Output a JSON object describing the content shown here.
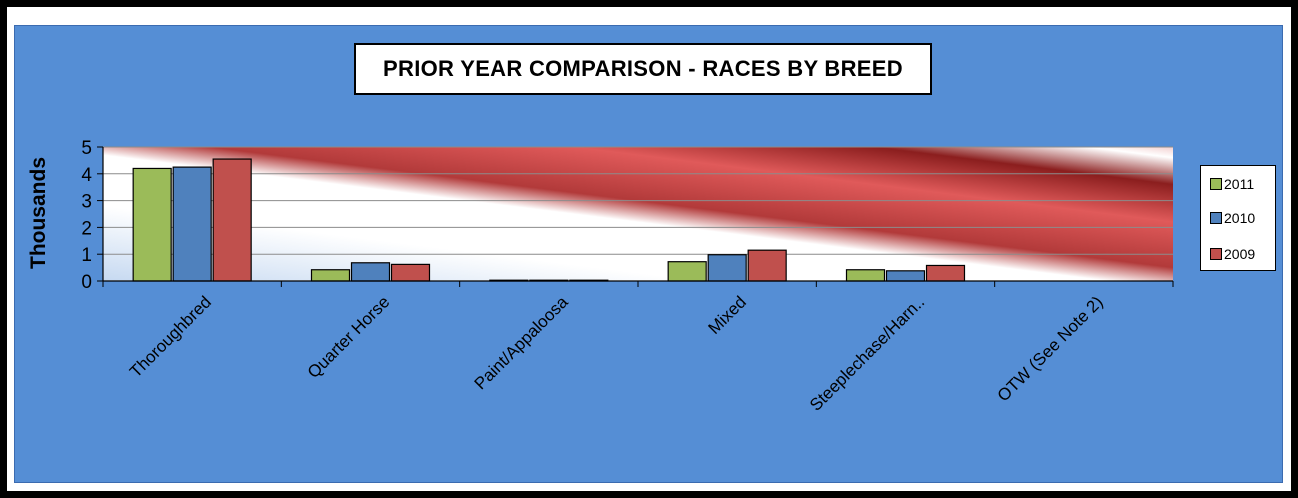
{
  "chart_data": {
    "type": "bar",
    "title": "PRIOR YEAR COMPARISON - RACES BY BREED",
    "ylabel": "Thousands",
    "xlabel": "",
    "ylim": [
      0,
      5
    ],
    "yticks": [
      "0",
      "1",
      "2",
      "3",
      "4",
      "5"
    ],
    "grid": true,
    "legend_position": "right",
    "categories": [
      "Thoroughbred",
      "Quarter Horse",
      "Paint/Appaloosa",
      "Mixed",
      "Steeplechase/Harn..",
      "OTW (See Note 2)"
    ],
    "series": [
      {
        "name": "2011",
        "color": "#9bbb59",
        "values": [
          4.2,
          0.42,
          0.03,
          0.72,
          0.42,
          0
        ]
      },
      {
        "name": "2010",
        "color": "#4f81bd",
        "values": [
          4.25,
          0.68,
          0.03,
          0.98,
          0.38,
          0
        ]
      },
      {
        "name": "2009",
        "color": "#c0504d",
        "values": [
          4.55,
          0.62,
          0.03,
          1.15,
          0.58,
          0
        ]
      }
    ]
  }
}
